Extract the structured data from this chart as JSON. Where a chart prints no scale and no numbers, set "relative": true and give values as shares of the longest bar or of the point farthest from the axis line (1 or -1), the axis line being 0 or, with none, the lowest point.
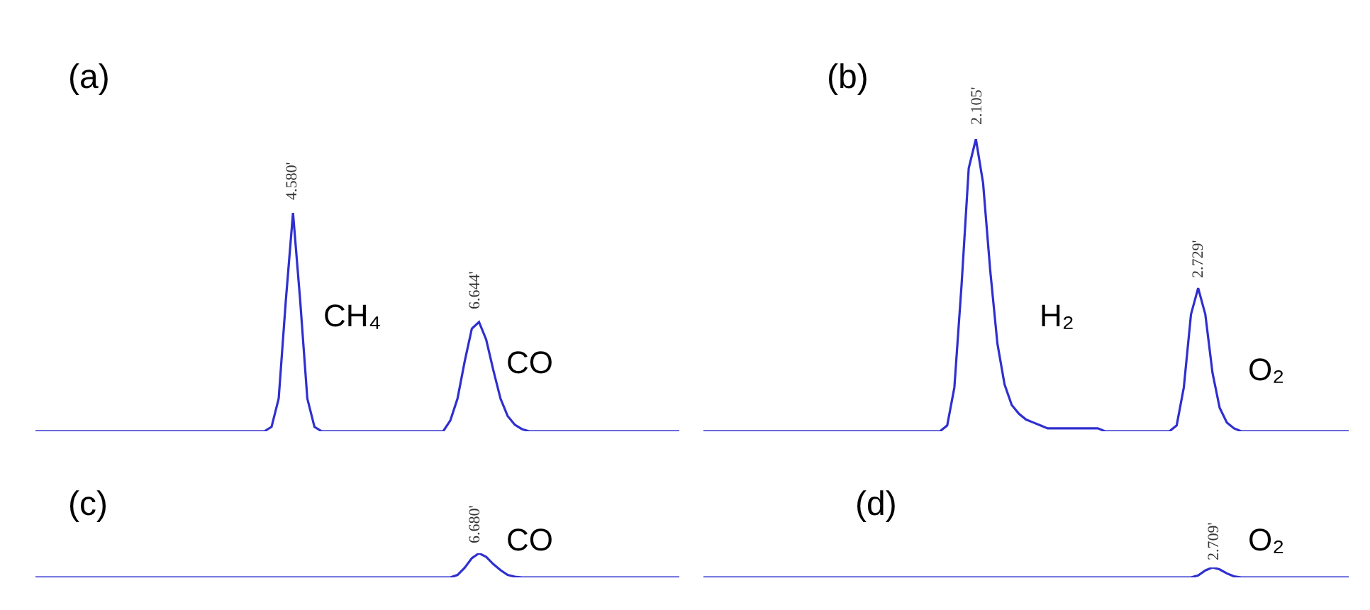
{
  "chart_data": [
    {
      "type": "line",
      "relative": true,
      "line_style": "solid",
      "categories": [
        null,
        null,
        null,
        null,
        null,
        null,
        null,
        null,
        null,
        null,
        null,
        null,
        null,
        null,
        null,
        null,
        null,
        null,
        null,
        null,
        null,
        null,
        null,
        null,
        null,
        null,
        null,
        null,
        null,
        null,
        null,
        null,
        null,
        null,
        null,
        null,
        null,
        null,
        null,
        null,
        null,
        null,
        null,
        null,
        null,
        null,
        null,
        null,
        null,
        null,
        null,
        null,
        null,
        null,
        null,
        null,
        null,
        null,
        null,
        null,
        null,
        null,
        null,
        null,
        null,
        null,
        null,
        null,
        null,
        null,
        null,
        null,
        null,
        null,
        null,
        null,
        null,
        null,
        null,
        null,
        null,
        null,
        null,
        null,
        null,
        null,
        null,
        null,
        null,
        null,
        null
      ],
      "series": [
        {
          "color": "#2f2fd0",
          "values": [
            0,
            0,
            0,
            0,
            0,
            0,
            0,
            0,
            0,
            0,
            0,
            0,
            0,
            0,
            0,
            0,
            0,
            0,
            0,
            0,
            0,
            0,
            0,
            0,
            0,
            0,
            0,
            0,
            0,
            0,
            0,
            0,
            0,
            0.02,
            0.15,
            0.6,
            1,
            0.6,
            0.15,
            0.02,
            0,
            0,
            0,
            0,
            0,
            0,
            0,
            0,
            0,
            0,
            0,
            0,
            0,
            0,
            0,
            0,
            0,
            0,
            0.05,
            0.15,
            0.32,
            0.47,
            0.5,
            0.42,
            0.28,
            0.15,
            0.07,
            0.03,
            0.01,
            0,
            0,
            0,
            0,
            0,
            0,
            0,
            0,
            0,
            0,
            0,
            0,
            0,
            0,
            0,
            0,
            0,
            0,
            0,
            0,
            0,
            0
          ]
        }
      ],
      "annotations": [
        "(a)",
        "4.580'",
        "CH₄",
        "6.644'",
        "CO"
      ]
    },
    {
      "type": "line",
      "relative": true,
      "line_style": "solid",
      "categories": [
        null,
        null,
        null,
        null,
        null,
        null,
        null,
        null,
        null,
        null,
        null,
        null,
        null,
        null,
        null,
        null,
        null,
        null,
        null,
        null,
        null,
        null,
        null,
        null,
        null,
        null,
        null,
        null,
        null,
        null,
        null,
        null,
        null,
        null,
        null,
        null,
        null,
        null,
        null,
        null,
        null,
        null,
        null,
        null,
        null,
        null,
        null,
        null,
        null,
        null,
        null,
        null,
        null,
        null,
        null,
        null,
        null,
        null,
        null,
        null,
        null,
        null,
        null,
        null,
        null,
        null,
        null,
        null,
        null,
        null,
        null,
        null,
        null,
        null,
        null,
        null,
        null,
        null,
        null,
        null,
        null,
        null,
        null,
        null,
        null,
        null,
        null,
        null,
        null,
        null,
        null
      ],
      "series": [
        {
          "color": "#2f2fd0",
          "values": [
            0,
            0,
            0,
            0,
            0,
            0,
            0,
            0,
            0,
            0,
            0,
            0,
            0,
            0,
            0,
            0,
            0,
            0,
            0,
            0,
            0,
            0,
            0,
            0,
            0,
            0,
            0,
            0,
            0,
            0,
            0,
            0,
            0,
            0,
            0.02,
            0.15,
            0.5,
            0.9,
            1,
            0.85,
            0.55,
            0.3,
            0.16,
            0.09,
            0.06,
            0.04,
            0.03,
            0.02,
            0.01,
            0.01,
            0.01,
            0.01,
            0.01,
            0.01,
            0.01,
            0.01,
            0,
            0,
            0,
            0,
            0,
            0,
            0,
            0,
            0,
            0,
            0.02,
            0.15,
            0.4,
            0.49,
            0.4,
            0.2,
            0.08,
            0.03,
            0.01,
            0,
            0,
            0,
            0,
            0,
            0,
            0,
            0,
            0,
            0,
            0,
            0,
            0,
            0,
            0,
            0
          ]
        }
      ],
      "annotations": [
        "(b)",
        "2.105'",
        "H₂",
        "2.729'",
        "O₂"
      ]
    },
    {
      "type": "line",
      "relative": true,
      "line_style": "solid",
      "categories": [
        null,
        null,
        null,
        null,
        null,
        null,
        null,
        null,
        null,
        null,
        null,
        null,
        null,
        null,
        null,
        null,
        null,
        null,
        null,
        null,
        null,
        null,
        null,
        null,
        null,
        null,
        null,
        null,
        null,
        null,
        null,
        null,
        null,
        null,
        null,
        null,
        null,
        null,
        null,
        null,
        null,
        null,
        null,
        null,
        null,
        null,
        null,
        null,
        null,
        null,
        null,
        null,
        null,
        null,
        null,
        null,
        null,
        null,
        null,
        null,
        null,
        null,
        null,
        null,
        null,
        null,
        null,
        null,
        null,
        null,
        null,
        null,
        null,
        null,
        null,
        null,
        null,
        null,
        null,
        null,
        null,
        null,
        null,
        null,
        null,
        null,
        null,
        null,
        null,
        null,
        null
      ],
      "series": [
        {
          "color": "#2f2fd0",
          "values": [
            0,
            0,
            0,
            0,
            0,
            0,
            0,
            0,
            0,
            0,
            0,
            0,
            0,
            0,
            0,
            0,
            0,
            0,
            0,
            0,
            0,
            0,
            0,
            0,
            0,
            0,
            0,
            0,
            0,
            0,
            0,
            0,
            0,
            0,
            0,
            0,
            0,
            0,
            0,
            0,
            0,
            0,
            0,
            0,
            0,
            0,
            0,
            0,
            0,
            0,
            0,
            0,
            0,
            0,
            0,
            0,
            0,
            0,
            0,
            0.1,
            0.4,
            0.8,
            1,
            0.85,
            0.55,
            0.3,
            0.1,
            0.03,
            0,
            0,
            0,
            0,
            0,
            0,
            0,
            0,
            0,
            0,
            0,
            0,
            0,
            0,
            0,
            0,
            0,
            0,
            0,
            0,
            0,
            0,
            0
          ]
        }
      ],
      "annotations": [
        "(c)",
        "6.680'",
        "CO"
      ]
    },
    {
      "type": "line",
      "relative": true,
      "line_style": "solid",
      "categories": [
        null,
        null,
        null,
        null,
        null,
        null,
        null,
        null,
        null,
        null,
        null,
        null,
        null,
        null,
        null,
        null,
        null,
        null,
        null,
        null,
        null,
        null,
        null,
        null,
        null,
        null,
        null,
        null,
        null,
        null,
        null,
        null,
        null,
        null,
        null,
        null,
        null,
        null,
        null,
        null,
        null,
        null,
        null,
        null,
        null,
        null,
        null,
        null,
        null,
        null,
        null,
        null,
        null,
        null,
        null,
        null,
        null,
        null,
        null,
        null,
        null,
        null,
        null,
        null,
        null,
        null,
        null,
        null,
        null,
        null,
        null,
        null,
        null,
        null,
        null,
        null,
        null,
        null,
        null,
        null,
        null,
        null,
        null,
        null,
        null,
        null,
        null,
        null,
        null,
        null,
        null
      ],
      "series": [
        {
          "color": "#2f2fd0",
          "values": [
            0,
            0,
            0,
            0,
            0,
            0,
            0,
            0,
            0,
            0,
            0,
            0,
            0,
            0,
            0,
            0,
            0,
            0,
            0,
            0,
            0,
            0,
            0,
            0,
            0,
            0,
            0,
            0,
            0,
            0,
            0,
            0,
            0,
            0,
            0,
            0,
            0,
            0,
            0,
            0,
            0,
            0,
            0,
            0,
            0,
            0,
            0,
            0,
            0,
            0,
            0,
            0,
            0,
            0,
            0,
            0,
            0,
            0,
            0,
            0,
            0,
            0,
            0,
            0,
            0,
            0,
            0,
            0,
            0,
            0.2,
            0.7,
            1,
            0.8,
            0.4,
            0.1,
            0,
            0,
            0,
            0,
            0,
            0,
            0,
            0,
            0,
            0,
            0,
            0,
            0,
            0,
            0,
            0
          ]
        }
      ],
      "annotations": [
        "(d)",
        "2.709'",
        "O₂"
      ]
    }
  ]
}
